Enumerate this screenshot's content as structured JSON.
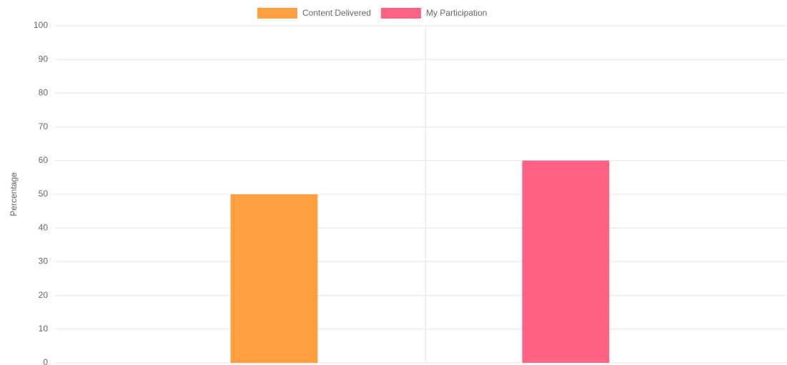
{
  "chart_data": {
    "type": "bar",
    "categories": [
      null
    ],
    "series": [
      {
        "name": "Content Delivered",
        "color": "#ff9f40",
        "values": [
          50
        ]
      },
      {
        "name": "My Participation",
        "color": "#ff6384",
        "values": [
          60
        ]
      }
    ],
    "y_label": "Percentage",
    "ylim": [
      0,
      100
    ],
    "yticks": [
      0,
      10,
      20,
      30,
      40,
      50,
      60,
      70,
      80,
      90,
      100
    ],
    "grid": true,
    "legend": "top"
  }
}
